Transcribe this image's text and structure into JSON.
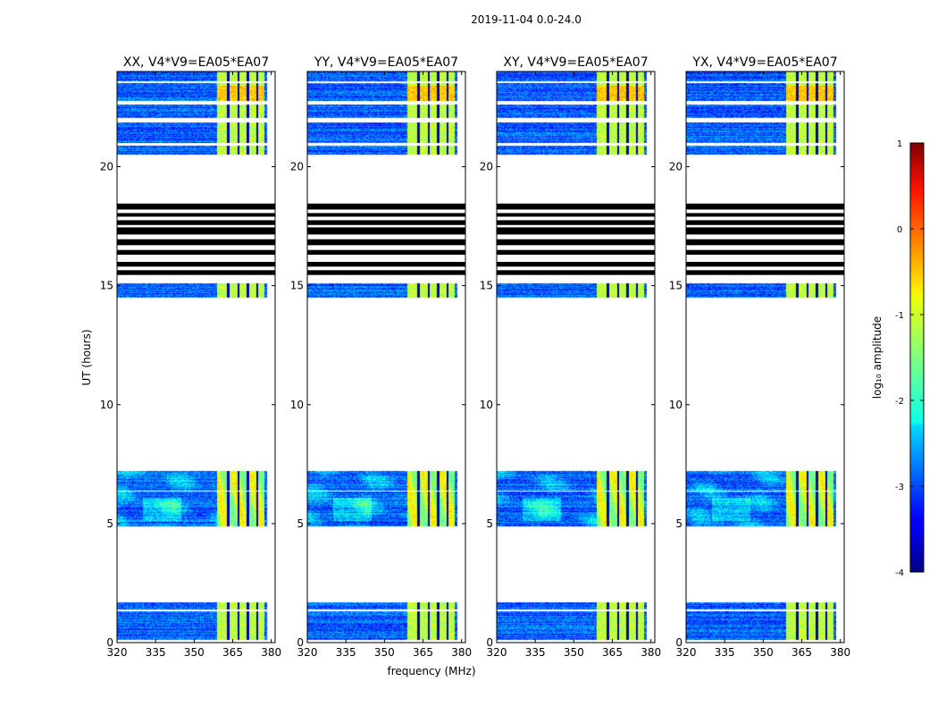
{
  "chart_data": {
    "type": "heatmap",
    "suptitle": "2019-11-04 0.0-24.0",
    "xlabel": "frequency (MHz)",
    "ylabel": "UT (hours)",
    "xlim": [
      320,
      381.5
    ],
    "ylim": [
      0,
      24
    ],
    "xticks": [
      320,
      335,
      350,
      365,
      380
    ],
    "yticks": [
      0,
      5,
      10,
      15,
      20
    ],
    "panels": [
      {
        "title": "XX, V4*V9=EA05*EA07",
        "seed": 11
      },
      {
        "title": "YY, V4*V9=EA05*EA07",
        "seed": 23
      },
      {
        "title": "XY, V4*V9=EA05*EA07",
        "seed": 37
      },
      {
        "title": "YX, V4*V9=EA05*EA07",
        "seed": 53
      }
    ],
    "data_blocks_ut": [
      [
        0.1,
        1.7
      ],
      [
        4.9,
        7.2
      ],
      [
        14.5,
        15.1
      ],
      [
        20.5,
        24.0
      ]
    ],
    "empty_rows_ut": [
      [
        1.3,
        1.4
      ],
      [
        6.35,
        6.4
      ],
      [
        23.5,
        23.6
      ],
      [
        21.85,
        22.05
      ],
      [
        20.9,
        21.0
      ],
      [
        22.6,
        22.75
      ]
    ],
    "flagged_rows_ut": [
      [
        15.45,
        15.65
      ],
      [
        15.8,
        16.0
      ],
      [
        16.3,
        16.5
      ],
      [
        16.7,
        16.95
      ],
      [
        17.15,
        17.45
      ],
      [
        17.55,
        17.75
      ],
      [
        17.9,
        18.05
      ],
      [
        18.2,
        18.45
      ]
    ],
    "bright_band_mhz": [
      359,
      377.5
    ],
    "rfi_channels_mhz": [
      363.3,
      367.2,
      370.8,
      374.6
    ],
    "colorbar": {
      "label": "log₁₀ amplitude",
      "range": [
        -4,
        1
      ],
      "ticks": [
        1,
        0,
        -1,
        -2,
        -3,
        -4
      ],
      "colormap": "jet"
    }
  }
}
